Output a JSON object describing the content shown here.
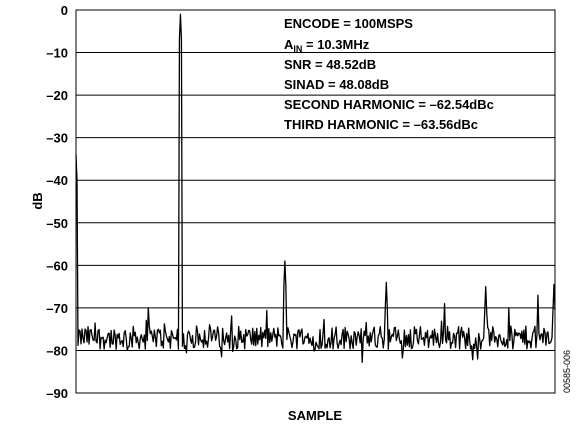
{
  "chart_data": {
    "type": "line",
    "title": "",
    "xlabel": "SAMPLE",
    "ylabel": "dB",
    "ylim": [
      -90,
      0
    ],
    "yticks": [
      0,
      -10,
      -20,
      -30,
      -40,
      -50,
      -60,
      -70,
      -80,
      -90
    ],
    "ytick_labels": [
      "0",
      "–10",
      "–20",
      "–30",
      "–40",
      "–50",
      "–60",
      "–70",
      "–80",
      "–90"
    ],
    "grid": "horizontal",
    "annotations": {
      "encode": "ENCODE = 100MSPS",
      "ain_prefix": "A",
      "ain_sub": "IN",
      "ain_suffix": " = 10.3MHz",
      "snr": "SNR = 48.52dB",
      "sinad": "SINAD = 48.08dB",
      "second_harmonic": "SECOND HARMONIC = –62.54dBc",
      "third_harmonic": "THIRD HARMONIC = –63.56dBc"
    },
    "figure_id": "00585-006",
    "series": [
      {
        "peaks": [
          {
            "pos": 0.0,
            "value": -34
          },
          {
            "pos": 0.219,
            "value": -1
          },
          {
            "pos": 0.436,
            "value": -59
          },
          {
            "pos": 0.648,
            "value": -64
          },
          {
            "pos": 0.855,
            "value": -65
          },
          {
            "pos": 0.997,
            "value": -64.5
          }
        ],
        "spurs": [
          {
            "pos": 0.15,
            "value": -70
          },
          {
            "pos": 0.77,
            "value": -69
          },
          {
            "pos": 0.903,
            "value": -70
          },
          {
            "pos": 0.965,
            "value": -67
          }
        ],
        "noise_floor": -77
      }
    ]
  }
}
